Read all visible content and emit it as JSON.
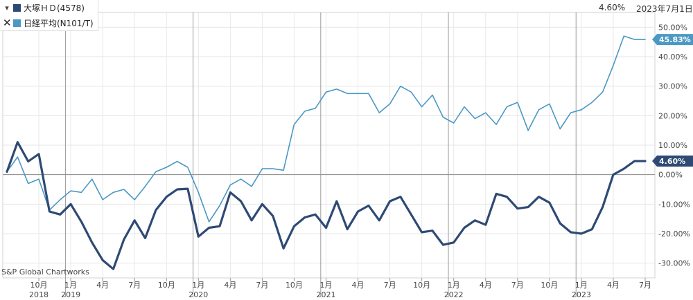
{
  "header": {
    "current_change": "4.60%",
    "as_of_date": "2023年7月1日"
  },
  "legend": [
    {
      "control": "▾",
      "control_icon": "dropdown-triangle-icon",
      "label": "大塚ＨＤ(4578)",
      "color": "#2e4a74"
    },
    {
      "control": "✕",
      "control_icon": "close-icon",
      "label": "日経平均(N101/T)",
      "color": "#4a98c4"
    }
  ],
  "credit": "S&P Global Chartworks",
  "chart_data": {
    "type": "line",
    "x": [
      "2018-07",
      "2018-08",
      "2018-09",
      "2018-10",
      "2018-11",
      "2018-12",
      "2019-01",
      "2019-02",
      "2019-03",
      "2019-04",
      "2019-05",
      "2019-06",
      "2019-07",
      "2019-08",
      "2019-09",
      "2019-10",
      "2019-11",
      "2019-12",
      "2020-01",
      "2020-02",
      "2020-03",
      "2020-04",
      "2020-05",
      "2020-06",
      "2020-07",
      "2020-08",
      "2020-09",
      "2020-10",
      "2020-11",
      "2020-12",
      "2021-01",
      "2021-02",
      "2021-03",
      "2021-04",
      "2021-05",
      "2021-06",
      "2021-07",
      "2021-08",
      "2021-09",
      "2021-10",
      "2021-11",
      "2021-12",
      "2022-01",
      "2022-02",
      "2022-03",
      "2022-04",
      "2022-05",
      "2022-06",
      "2022-07",
      "2022-08",
      "2022-09",
      "2022-10",
      "2022-11",
      "2022-12",
      "2023-01",
      "2023-02",
      "2023-03",
      "2023-04",
      "2023-05",
      "2023-06",
      "2023-07"
    ],
    "series": [
      {
        "name": "大塚ＨＤ(4578)",
        "color": "#2e4a74",
        "end_label": "4.60%",
        "values": [
          1.0,
          11.0,
          4.5,
          7.0,
          -12.5,
          -13.5,
          -10.0,
          -16.0,
          -23.0,
          -29.0,
          -32.0,
          -22.0,
          -15.5,
          -21.5,
          -12.0,
          -7.5,
          -5.0,
          -4.8,
          -21.0,
          -18.0,
          -17.5,
          -6.0,
          -9.0,
          -15.5,
          -10.0,
          -14.0,
          -25.0,
          -17.5,
          -14.5,
          -13.5,
          -18.0,
          -9.0,
          -18.5,
          -12.5,
          -10.5,
          -15.5,
          -9.0,
          -7.5,
          -13.5,
          -19.5,
          -19.0,
          -23.8,
          -23.0,
          -18.0,
          -15.5,
          -17.0,
          -6.5,
          -7.5,
          -11.5,
          -11.0,
          -7.5,
          -9.5,
          -16.5,
          -19.5,
          -20.0,
          -18.5,
          -11.0,
          0.0,
          2.0,
          4.6,
          4.6
        ]
      },
      {
        "name": "日経平均(N101/T)",
        "color": "#4a98c4",
        "end_label": "45.83%",
        "values": [
          1.0,
          6.0,
          -3.0,
          -1.5,
          -12.0,
          -8.5,
          -5.5,
          -6.0,
          -1.5,
          -8.5,
          -6.0,
          -5.0,
          -8.5,
          -4.0,
          1.0,
          2.5,
          4.5,
          2.5,
          -6.0,
          -16.0,
          -10.5,
          -3.5,
          -1.5,
          -4.0,
          2.0,
          2.0,
          1.5,
          17.0,
          21.5,
          22.5,
          28.0,
          29.0,
          27.5,
          27.5,
          27.5,
          21.0,
          24.0,
          30.0,
          28.0,
          23.0,
          27.0,
          19.5,
          17.5,
          23.0,
          19.0,
          21.0,
          17.0,
          23.0,
          24.5,
          15.0,
          22.0,
          24.0,
          15.5,
          21.0,
          22.0,
          24.5,
          28.0,
          37.0,
          47.0,
          45.83,
          45.83
        ]
      }
    ],
    "ylim": [
      -35,
      55
    ],
    "yticks": [
      50,
      40,
      30,
      20,
      10,
      0,
      -10,
      -20,
      -30
    ],
    "ytick_labels": [
      "50.00%",
      "40.00%",
      "30.00%",
      "20.00%",
      "10.00%",
      "0.00%",
      "-10.00%",
      "-20.00%",
      "-30.00%"
    ],
    "xticks": [
      {
        "x": "2018-10",
        "label": "10月"
      },
      {
        "x": "2019-01",
        "label": "1月"
      },
      {
        "x": "2019-04",
        "label": "4月"
      },
      {
        "x": "2019-07",
        "label": "7月"
      },
      {
        "x": "2019-10",
        "label": "10月"
      },
      {
        "x": "2020-01",
        "label": "1月"
      },
      {
        "x": "2020-04",
        "label": "4月"
      },
      {
        "x": "2020-07",
        "label": "7月"
      },
      {
        "x": "2020-10",
        "label": "10月"
      },
      {
        "x": "2021-01",
        "label": "1月"
      },
      {
        "x": "2021-04",
        "label": "4月"
      },
      {
        "x": "2021-07",
        "label": "7月"
      },
      {
        "x": "2021-10",
        "label": "10月"
      },
      {
        "x": "2022-01",
        "label": "1月"
      },
      {
        "x": "2022-04",
        "label": "4月"
      },
      {
        "x": "2022-07",
        "label": "7月"
      },
      {
        "x": "2022-10",
        "label": "10月"
      },
      {
        "x": "2023-01",
        "label": "1月"
      },
      {
        "x": "2023-04",
        "label": "4月"
      },
      {
        "x": "2023-07",
        "label": "7月"
      }
    ],
    "year_labels": [
      {
        "x": "2018-10",
        "label": "2018"
      },
      {
        "x": "2019-01",
        "label": "2019"
      },
      {
        "x": "2020-01",
        "label": "2020"
      },
      {
        "x": "2021-01",
        "label": "2021"
      },
      {
        "x": "2022-01",
        "label": "2022"
      },
      {
        "x": "2023-01",
        "label": "2023"
      }
    ],
    "year_dividers": [
      "2018-12",
      "2019-12",
      "2020-12",
      "2021-12",
      "2022-12"
    ],
    "zero_line": 0,
    "grid": true
  }
}
